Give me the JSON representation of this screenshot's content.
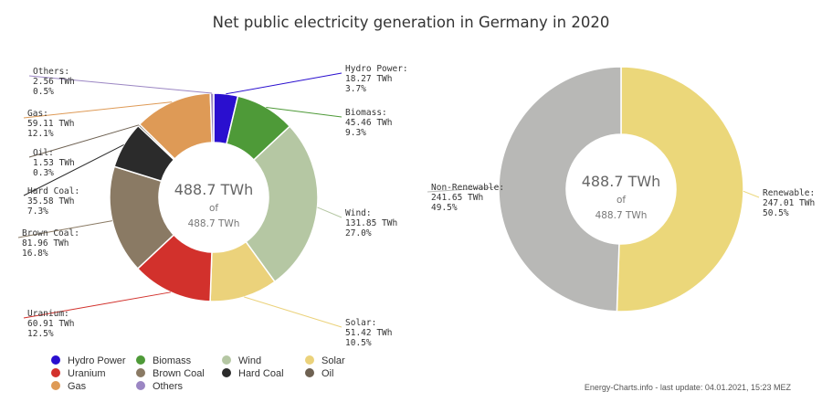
{
  "title": "Net public electricity generation in Germany in 2020",
  "footer": "Energy-Charts.info - last update: 04.01.2021, 15:23 MEZ",
  "chart_data": [
    {
      "type": "pie",
      "variant": "donut",
      "center": {
        "value": "488.7 TWh",
        "of": "of",
        "total": "488.7 TWh"
      },
      "slices": [
        {
          "name": "Hydro Power",
          "label": "Hydro Power:",
          "value": 18.27,
          "value_text": "18.27 TWh",
          "percent_text": "3.7%",
          "color": "#2a0fcf"
        },
        {
          "name": "Biomass",
          "label": "Biomass:",
          "value": 45.46,
          "value_text": "45.46 TWh",
          "percent_text": "9.3%",
          "color": "#4e9a38"
        },
        {
          "name": "Wind",
          "label": "Wind:",
          "value": 131.85,
          "value_text": "131.85 TWh",
          "percent_text": "27.0%",
          "color": "#b5c7a3"
        },
        {
          "name": "Solar",
          "label": "Solar:",
          "value": 51.42,
          "value_text": "51.42 TWh",
          "percent_text": "10.5%",
          "color": "#ebd27b"
        },
        {
          "name": "Uranium",
          "label": "Uranium:",
          "value": 60.91,
          "value_text": "60.91 TWh",
          "percent_text": "12.5%",
          "color": "#d2312c"
        },
        {
          "name": "Brown Coal",
          "label": "Brown Coal:",
          "value": 81.96,
          "value_text": "81.96 TWh",
          "percent_text": "16.8%",
          "color": "#8a7a64"
        },
        {
          "name": "Hard Coal",
          "label": "Hard Coal:",
          "value": 35.58,
          "value_text": "35.58 TWh",
          "percent_text": "7.3%",
          "color": "#2b2b2b"
        },
        {
          "name": "Oil",
          "label": "Oil:",
          "value": 1.53,
          "value_text": "1.53 TWh",
          "percent_text": "0.3%",
          "color": "#6e6152"
        },
        {
          "name": "Gas",
          "label": "Gas:",
          "value": 59.11,
          "value_text": "59.11 TWh",
          "percent_text": "12.1%",
          "color": "#de9a56"
        },
        {
          "name": "Others",
          "label": "Others:",
          "value": 2.56,
          "value_text": "2.56 TWh",
          "percent_text": "0.5%",
          "color": "#9b86c3"
        }
      ],
      "legend": [
        "Hydro Power",
        "Biomass",
        "Wind",
        "Solar",
        "Uranium",
        "Brown Coal",
        "Hard Coal",
        "Oil",
        "Gas",
        "Others"
      ]
    },
    {
      "type": "pie",
      "variant": "donut",
      "center": {
        "value": "488.7 TWh",
        "of": "of",
        "total": "488.7 TWh"
      },
      "slices": [
        {
          "name": "Renewable",
          "label": "Renewable:",
          "value": 247.01,
          "value_text": "247.01 TWh",
          "percent_text": "50.5%",
          "color": "#ebd77a"
        },
        {
          "name": "Non-Renewable",
          "label": "Non-Renewable:",
          "value": 241.65,
          "value_text": "241.65 TWh",
          "percent_text": "49.5%",
          "color": "#b8b8b6"
        }
      ]
    }
  ]
}
